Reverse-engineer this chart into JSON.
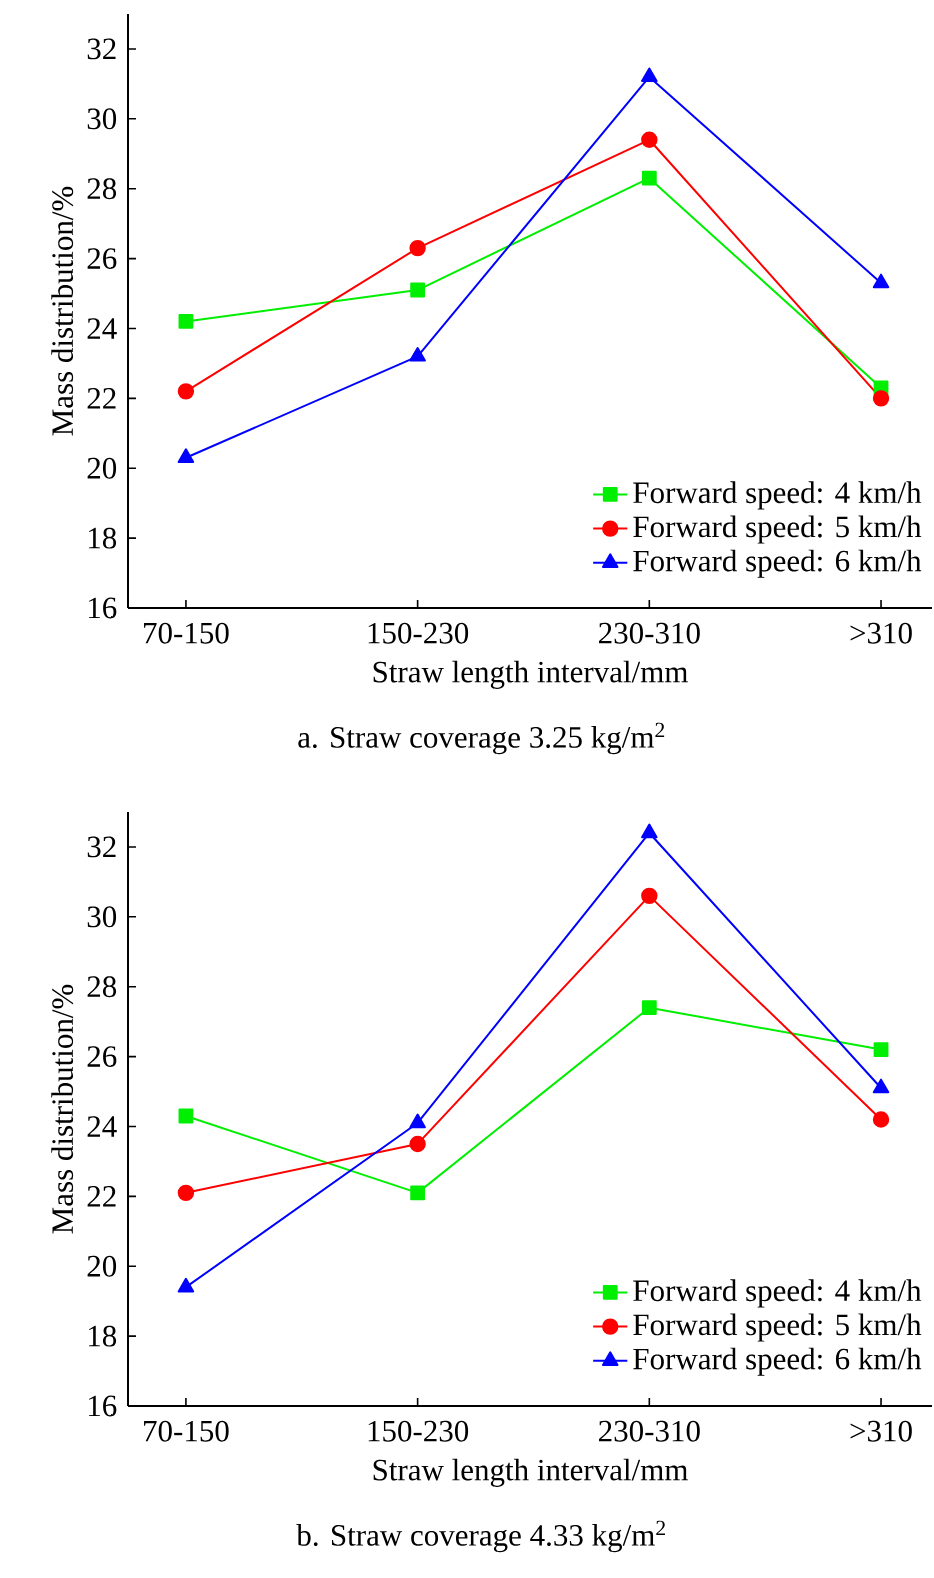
{
  "chart_data": [
    {
      "type": "line",
      "title": "a. Straw coverage 3.25 kg/m$^{2}$",
      "xlabel": "Straw length interval/mm",
      "ylabel": "Mass distribution/%",
      "categories": [
        "70-150",
        "150-230",
        "230-310",
        ">310"
      ],
      "series": [
        {
          "name": "Forward speed: 4 km/h",
          "color": "#00ee00",
          "marker": "square",
          "values": [
            24.2,
            25.1,
            28.3,
            22.3
          ]
        },
        {
          "name": "Forward speed: 5 km/h",
          "color": "#ff0000",
          "marker": "circle",
          "values": [
            22.2,
            26.3,
            29.4,
            22.0
          ]
        },
        {
          "name": "Forward speed: 6 km/h",
          "color": "#0000ff",
          "marker": "triangle",
          "values": [
            20.3,
            23.2,
            31.2,
            25.3
          ]
        }
      ],
      "ylim": [
        16,
        33
      ],
      "yticks": [
        16,
        18,
        20,
        22,
        24,
        26,
        28,
        30,
        32
      ],
      "legend": "bottom right"
    },
    {
      "type": "line",
      "title": "b. Straw coverage 4.33 kg/m$^{2}$",
      "xlabel": "Straw length interval/mm",
      "ylabel": "Mass distribution/%",
      "categories": [
        "70-150",
        "150-230",
        "230-310",
        ">310"
      ],
      "series": [
        {
          "name": "Forward speed: 4 km/h",
          "color": "#00ee00",
          "marker": "square",
          "values": [
            24.3,
            22.1,
            27.4,
            26.2
          ]
        },
        {
          "name": "Forward speed: 5 km/h",
          "color": "#ff0000",
          "marker": "circle",
          "values": [
            22.1,
            23.5,
            30.6,
            24.2
          ]
        },
        {
          "name": "Forward speed: 6 km/h",
          "color": "#0000ff",
          "marker": "triangle",
          "values": [
            19.4,
            24.1,
            32.4,
            25.1
          ]
        }
      ],
      "ylim": [
        16,
        33
      ],
      "yticks": [
        16,
        18,
        20,
        22,
        24,
        26,
        28,
        30,
        32
      ],
      "legend": "bottom right"
    }
  ]
}
